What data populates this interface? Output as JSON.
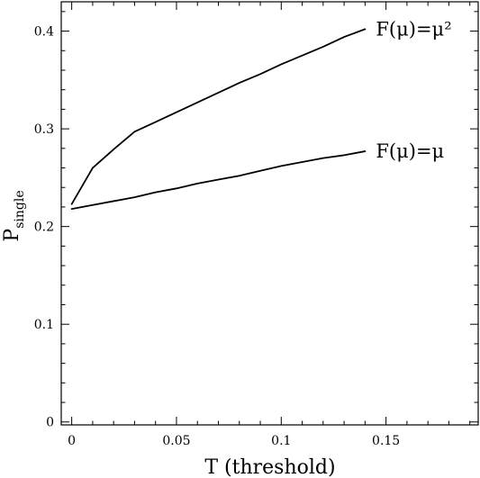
{
  "chart_data": {
    "type": "line",
    "xlabel": "T (threshold)",
    "ylabel_main": "P",
    "ylabel_sub": "single",
    "xlim": [
      -0.005,
      0.194
    ],
    "ylim": [
      -0.003,
      0.43
    ],
    "xticks": [
      0,
      0.05,
      0.1,
      0.15
    ],
    "xtick_labels": [
      "0",
      "0.05",
      "0.1",
      "0.15"
    ],
    "yticks": [
      0,
      0.1,
      0.2,
      0.3,
      0.4
    ],
    "ytick_labels": [
      "0",
      "0.1",
      "0.2",
      "0.3",
      "0.4"
    ],
    "x_minor_step": 0.01,
    "y_minor_step": 0.02,
    "grid": false,
    "series": [
      {
        "name": "F(μ)=μ²",
        "x": [
          0,
          0.01,
          0.02,
          0.03,
          0.04,
          0.05,
          0.06,
          0.07,
          0.08,
          0.09,
          0.1,
          0.11,
          0.12,
          0.13,
          0.14
        ],
        "y": [
          0.223,
          0.26,
          0.279,
          0.297,
          0.307,
          0.317,
          0.327,
          0.337,
          0.347,
          0.356,
          0.366,
          0.375,
          0.384,
          0.394,
          0.402
        ]
      },
      {
        "name": "F(μ)=μ",
        "x": [
          0,
          0.01,
          0.02,
          0.03,
          0.04,
          0.05,
          0.06,
          0.07,
          0.08,
          0.09,
          0.1,
          0.11,
          0.12,
          0.13,
          0.14
        ],
        "y": [
          0.218,
          0.222,
          0.226,
          0.23,
          0.235,
          0.239,
          0.244,
          0.248,
          0.252,
          0.257,
          0.262,
          0.266,
          0.27,
          0.273,
          0.277
        ]
      }
    ]
  }
}
